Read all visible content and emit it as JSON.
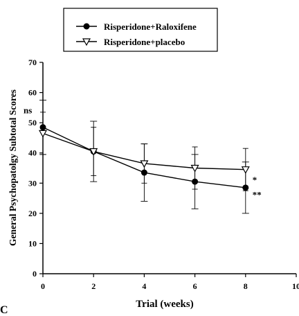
{
  "chart_data": {
    "type": "line",
    "xlabel": "Trial (weeks)",
    "ylabel": "General Psychopatolgy Subtotal Scores",
    "xlim": [
      0,
      10
    ],
    "ylim": [
      0,
      70
    ],
    "x_ticks": [
      "0",
      "2",
      "4",
      "6",
      "8",
      "10"
    ],
    "y_ticks": [
      "0",
      "10",
      "20",
      "30",
      "40",
      "50",
      "60",
      "70"
    ],
    "grid": false,
    "legend": "top",
    "panel_label": "C",
    "annotations": [
      {
        "text": "ns",
        "x": 0,
        "y": 54
      },
      {
        "text": "*",
        "x": 8,
        "y": 31
      },
      {
        "text": "**",
        "x": 8,
        "y": 26
      }
    ],
    "series": [
      {
        "name": "Risperidone+Raloxifene",
        "marker": "filled-circle",
        "x": [
          0,
          2,
          4,
          6,
          8
        ],
        "y": [
          48.5,
          40.5,
          33.5,
          30.5,
          28.5
        ],
        "error": [
          9,
          10,
          9.5,
          9,
          8.5
        ]
      },
      {
        "name": "Risperidone+placebo",
        "marker": "open-triangle-down",
        "x": [
          0,
          2,
          4,
          6,
          8
        ],
        "y": [
          46.5,
          40.5,
          36.5,
          35,
          34.5
        ],
        "error": [
          7,
          8,
          6.5,
          7,
          7
        ]
      }
    ]
  }
}
